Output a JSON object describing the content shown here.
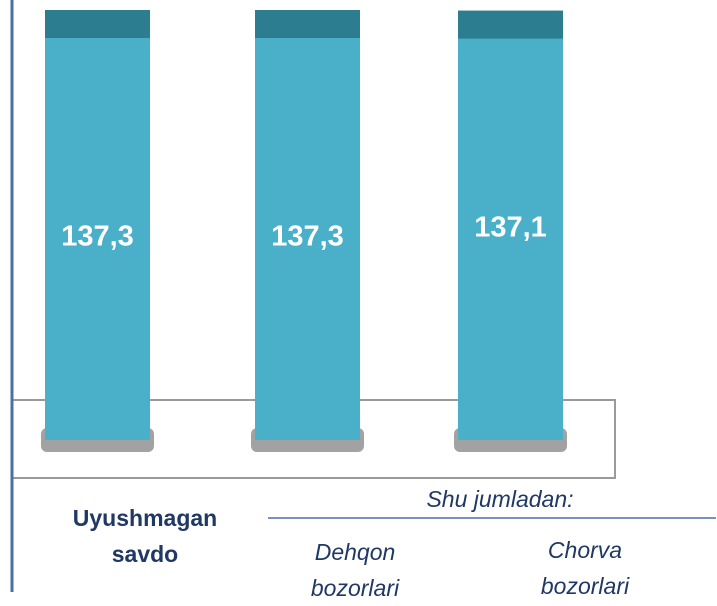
{
  "chart_data": {
    "type": "bar",
    "categories": [
      "Uyushmagan savdo",
      "Dehqon bozorlari",
      "Chorva bozorlari"
    ],
    "values": [
      137.3,
      137.3,
      137.1
    ],
    "value_labels": [
      "137,3",
      "137,3",
      "137,1"
    ],
    "color": "#4aafc9",
    "annotation": "Shu jumladan:"
  }
}
